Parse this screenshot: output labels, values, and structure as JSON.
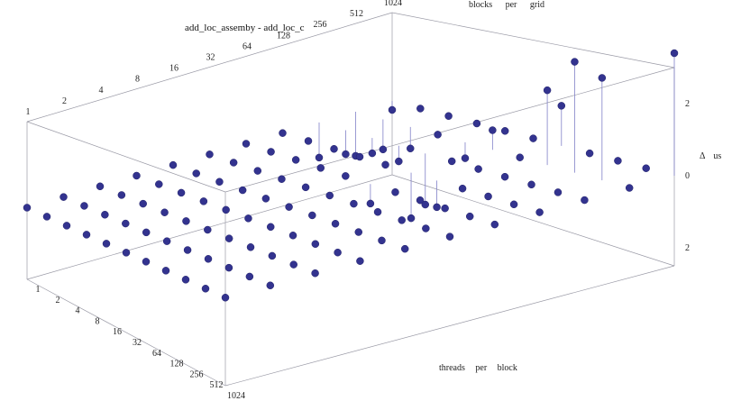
{
  "chart_data": {
    "type": "scatter3d",
    "title": "add_loc_assemby - add_loc_c",
    "x_axis": {
      "label": "threads per block",
      "ticks": [
        "1",
        "2",
        "4",
        "8",
        "16",
        "32",
        "64",
        "128",
        "256",
        "512",
        "1024"
      ]
    },
    "y_axis": {
      "label": "blocks per grid",
      "ticks": [
        "1",
        "2",
        "4",
        "8",
        "16",
        "32",
        "64",
        "128",
        "256",
        "512",
        "1024"
      ]
    },
    "z_axis": {
      "label": "Δ us",
      "ticks": [
        "2",
        "0",
        "2"
      ],
      "range": [
        -2.5,
        3
      ]
    },
    "grid": false,
    "values": [
      [
        0.0,
        0.0,
        0.0,
        0.0,
        0.0,
        0.0,
        0.0,
        0.0,
        -1.2,
        -1.5,
        -0.3
      ],
      [
        0.0,
        0.0,
        0.0,
        0.0,
        0.0,
        0.0,
        0.0,
        0.0,
        -0.8,
        -1.0,
        0.0
      ],
      [
        0.0,
        0.0,
        0.0,
        0.0,
        0.0,
        0.0,
        0.0,
        0.0,
        -0.5,
        -0.7,
        0.0
      ],
      [
        0.0,
        0.0,
        0.0,
        0.0,
        0.0,
        0.0,
        0.0,
        0.0,
        -0.5,
        0.0,
        0.0
      ],
      [
        0.0,
        0.0,
        0.0,
        0.0,
        0.0,
        0.0,
        0.0,
        0.0,
        -1.6,
        -0.5,
        0.0
      ],
      [
        0.0,
        0.0,
        0.0,
        0.0,
        0.0,
        0.0,
        -0.6,
        -1.4,
        0.0,
        0.6,
        0.0
      ],
      [
        0.0,
        0.0,
        0.0,
        0.0,
        0.0,
        0.0,
        0.0,
        -0.8,
        0.0,
        0.0,
        1.2
      ],
      [
        0.0,
        0.0,
        0.0,
        0.0,
        0.0,
        0.0,
        0.0,
        0.0,
        0.0,
        2.2,
        0.0
      ],
      [
        0.0,
        0.0,
        0.0,
        0.0,
        0.0,
        0.0,
        0.0,
        0.0,
        0.0,
        3.2,
        0.0
      ],
      [
        0.0,
        0.0,
        0.0,
        0.0,
        0.0,
        0.0,
        0.0,
        0.0,
        0.0,
        2.9,
        0.0
      ],
      [
        0.0,
        0.0,
        0.0,
        0.0,
        0.0,
        0.0,
        0.0,
        0.0,
        0.0,
        0.0,
        3.4
      ]
    ],
    "colors": {
      "point": "#33338f",
      "stem": "#8080c8",
      "box": "#9a9aa6"
    }
  }
}
